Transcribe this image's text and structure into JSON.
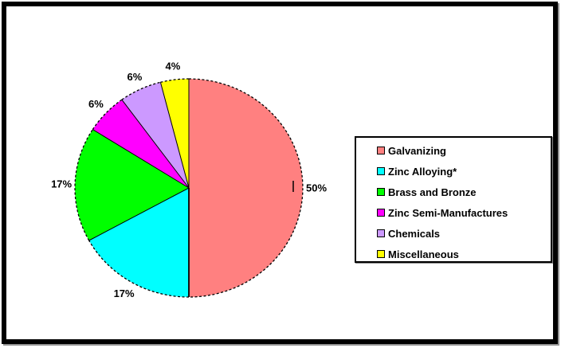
{
  "chart_data": {
    "type": "pie",
    "title": "",
    "categories": [
      "Galvanizing",
      "Zinc Alloying*",
      "Brass and Bronze",
      "Zinc Semi-Manufactures",
      "Chemicals",
      "Miscellaneous"
    ],
    "values": [
      50,
      17,
      17,
      6,
      6,
      4
    ],
    "unit": "%",
    "slice_labels": [
      "50%",
      "17%",
      "17%",
      "6%",
      "6%",
      "4%"
    ],
    "colors": [
      "#FF8080",
      "#00FFFF",
      "#00FF00",
      "#FF00FF",
      "#CC99FF",
      "#FFFF00"
    ],
    "start_angle_deg": 0,
    "direction": "clockwise",
    "legend_position": "right",
    "legend": {
      "items": [
        {
          "label": "Galvanizing",
          "color": "#FF8080"
        },
        {
          "label": "Zinc Alloying*",
          "color": "#00FFFF"
        },
        {
          "label": "Brass and Bronze",
          "color": "#00FF00"
        },
        {
          "label": "Zinc Semi-Manufactures",
          "color": "#FF00FF"
        },
        {
          "label": "Chemicals",
          "color": "#CC99FF"
        },
        {
          "label": "Miscellaneous",
          "color": "#FFFF00"
        }
      ]
    }
  }
}
